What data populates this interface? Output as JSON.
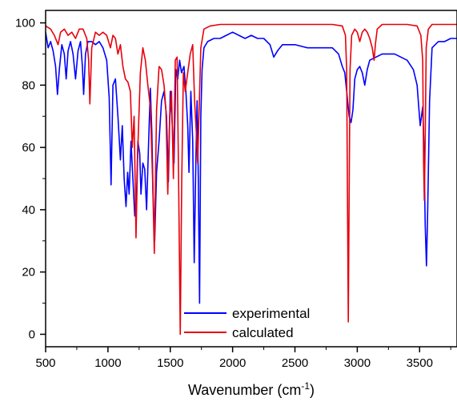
{
  "chart_data": {
    "type": "line",
    "title": "",
    "xlabel": "Wavenumber (cm",
    "xlabel_sup": "-1",
    "xlabel_close": ")",
    "ylabel": "",
    "xlim": [
      500,
      3800
    ],
    "ylim": [
      -4,
      104
    ],
    "x_ticks": [
      500,
      1000,
      1500,
      2000,
      2500,
      3000,
      3500
    ],
    "x_tick_labels": [
      "500",
      "1000",
      "1500",
      "2000",
      "2500",
      "3000",
      "3500"
    ],
    "y_ticks": [
      0,
      20,
      40,
      60,
      80,
      100
    ],
    "y_tick_labels": [
      "0",
      "20",
      "40",
      "60",
      "80",
      "100"
    ],
    "grid": false,
    "legend_position": "bottom-center",
    "series": [
      {
        "name": "experimental",
        "color": "#0000ff",
        "points": [
          [
            500,
            97
          ],
          [
            520,
            92
          ],
          [
            540,
            94
          ],
          [
            560,
            91
          ],
          [
            580,
            86
          ],
          [
            595,
            77
          ],
          [
            610,
            85
          ],
          [
            630,
            93
          ],
          [
            650,
            90
          ],
          [
            665,
            82
          ],
          [
            680,
            91
          ],
          [
            700,
            94
          ],
          [
            720,
            90
          ],
          [
            740,
            82
          ],
          [
            760,
            91
          ],
          [
            780,
            94
          ],
          [
            795,
            86
          ],
          [
            805,
            77
          ],
          [
            820,
            90
          ],
          [
            840,
            94
          ],
          [
            870,
            94
          ],
          [
            900,
            93
          ],
          [
            930,
            94
          ],
          [
            960,
            92
          ],
          [
            990,
            88
          ],
          [
            1010,
            76
          ],
          [
            1025,
            48
          ],
          [
            1040,
            80
          ],
          [
            1060,
            82
          ],
          [
            1080,
            70
          ],
          [
            1100,
            56
          ],
          [
            1115,
            67
          ],
          [
            1130,
            50
          ],
          [
            1145,
            41
          ],
          [
            1158,
            52
          ],
          [
            1170,
            45
          ],
          [
            1185,
            62
          ],
          [
            1200,
            50
          ],
          [
            1215,
            38
          ],
          [
            1228,
            42
          ],
          [
            1240,
            62
          ],
          [
            1255,
            58
          ],
          [
            1265,
            45
          ],
          [
            1280,
            55
          ],
          [
            1295,
            53
          ],
          [
            1310,
            40
          ],
          [
            1325,
            60
          ],
          [
            1340,
            79
          ],
          [
            1352,
            65
          ],
          [
            1362,
            45
          ],
          [
            1375,
            30
          ],
          [
            1390,
            52
          ],
          [
            1410,
            62
          ],
          [
            1430,
            75
          ],
          [
            1450,
            78
          ],
          [
            1470,
            70
          ],
          [
            1485,
            49
          ],
          [
            1500,
            78
          ],
          [
            1515,
            68
          ],
          [
            1530,
            55
          ],
          [
            1545,
            85
          ],
          [
            1560,
            82
          ],
          [
            1575,
            88
          ],
          [
            1590,
            84
          ],
          [
            1610,
            86
          ],
          [
            1625,
            78
          ],
          [
            1640,
            67
          ],
          [
            1650,
            52
          ],
          [
            1665,
            78
          ],
          [
            1680,
            62
          ],
          [
            1692,
            23
          ],
          [
            1705,
            55
          ],
          [
            1715,
            75
          ],
          [
            1725,
            50
          ],
          [
            1735,
            10
          ],
          [
            1745,
            70
          ],
          [
            1755,
            85
          ],
          [
            1770,
            92
          ],
          [
            1800,
            94
          ],
          [
            1850,
            95
          ],
          [
            1900,
            95
          ],
          [
            1950,
            96
          ],
          [
            2000,
            97
          ],
          [
            2050,
            96
          ],
          [
            2100,
            95
          ],
          [
            2150,
            96
          ],
          [
            2200,
            95
          ],
          [
            2250,
            95
          ],
          [
            2300,
            93
          ],
          [
            2330,
            89
          ],
          [
            2360,
            91
          ],
          [
            2400,
            93
          ],
          [
            2500,
            93
          ],
          [
            2600,
            92
          ],
          [
            2700,
            92
          ],
          [
            2800,
            92
          ],
          [
            2850,
            90
          ],
          [
            2880,
            86
          ],
          [
            2900,
            84
          ],
          [
            2920,
            76
          ],
          [
            2935,
            70
          ],
          [
            2950,
            68
          ],
          [
            2965,
            72
          ],
          [
            2980,
            82
          ],
          [
            3000,
            85
          ],
          [
            3020,
            86
          ],
          [
            3040,
            84
          ],
          [
            3060,
            80
          ],
          [
            3080,
            85
          ],
          [
            3100,
            88
          ],
          [
            3150,
            89
          ],
          [
            3200,
            90
          ],
          [
            3250,
            90
          ],
          [
            3300,
            90
          ],
          [
            3350,
            89
          ],
          [
            3400,
            88
          ],
          [
            3450,
            85
          ],
          [
            3480,
            80
          ],
          [
            3495,
            72
          ],
          [
            3505,
            67
          ],
          [
            3515,
            70
          ],
          [
            3525,
            73
          ],
          [
            3535,
            60
          ],
          [
            3545,
            35
          ],
          [
            3555,
            22
          ],
          [
            3565,
            40
          ],
          [
            3580,
            75
          ],
          [
            3600,
            92
          ],
          [
            3650,
            94
          ],
          [
            3700,
            94
          ],
          [
            3750,
            95
          ],
          [
            3800,
            95
          ]
        ]
      },
      {
        "name": "calculated",
        "color": "#e8000b",
        "points": [
          [
            500,
            99
          ],
          [
            540,
            98
          ],
          [
            570,
            96
          ],
          [
            600,
            93
          ],
          [
            620,
            97
          ],
          [
            650,
            98
          ],
          [
            680,
            96
          ],
          [
            710,
            97
          ],
          [
            740,
            95
          ],
          [
            770,
            98
          ],
          [
            800,
            98
          ],
          [
            830,
            95
          ],
          [
            845,
            88
          ],
          [
            855,
            74
          ],
          [
            870,
            92
          ],
          [
            900,
            97
          ],
          [
            930,
            96
          ],
          [
            960,
            97
          ],
          [
            990,
            96
          ],
          [
            1020,
            92
          ],
          [
            1040,
            96
          ],
          [
            1060,
            95
          ],
          [
            1080,
            90
          ],
          [
            1100,
            93
          ],
          [
            1120,
            86
          ],
          [
            1140,
            82
          ],
          [
            1160,
            81
          ],
          [
            1180,
            78
          ],
          [
            1195,
            60
          ],
          [
            1210,
            70
          ],
          [
            1225,
            31
          ],
          [
            1240,
            60
          ],
          [
            1260,
            84
          ],
          [
            1280,
            92
          ],
          [
            1300,
            88
          ],
          [
            1320,
            80
          ],
          [
            1340,
            73
          ],
          [
            1358,
            50
          ],
          [
            1372,
            26
          ],
          [
            1390,
            72
          ],
          [
            1410,
            86
          ],
          [
            1430,
            85
          ],
          [
            1450,
            80
          ],
          [
            1465,
            72
          ],
          [
            1480,
            45
          ],
          [
            1495,
            70
          ],
          [
            1510,
            78
          ],
          [
            1525,
            50
          ],
          [
            1540,
            88
          ],
          [
            1555,
            89
          ],
          [
            1568,
            45
          ],
          [
            1580,
            0
          ],
          [
            1592,
            50
          ],
          [
            1605,
            84
          ],
          [
            1620,
            78
          ],
          [
            1640,
            84
          ],
          [
            1660,
            90
          ],
          [
            1680,
            93
          ],
          [
            1695,
            75
          ],
          [
            1710,
            64
          ],
          [
            1720,
            55
          ],
          [
            1730,
            70
          ],
          [
            1745,
            92
          ],
          [
            1770,
            98
          ],
          [
            1820,
            99
          ],
          [
            1900,
            99.5
          ],
          [
            2000,
            99.5
          ],
          [
            2200,
            99.5
          ],
          [
            2400,
            99.5
          ],
          [
            2600,
            99.5
          ],
          [
            2800,
            99.5
          ],
          [
            2880,
            99
          ],
          [
            2905,
            96
          ],
          [
            2915,
            85
          ],
          [
            2922,
            40
          ],
          [
            2928,
            4
          ],
          [
            2934,
            40
          ],
          [
            2942,
            85
          ],
          [
            2955,
            96
          ],
          [
            2980,
            98
          ],
          [
            3000,
            97
          ],
          [
            3020,
            94
          ],
          [
            3040,
            97
          ],
          [
            3060,
            98
          ],
          [
            3080,
            97
          ],
          [
            3100,
            95
          ],
          [
            3120,
            92
          ],
          [
            3135,
            88
          ],
          [
            3145,
            93
          ],
          [
            3160,
            98
          ],
          [
            3200,
            99.5
          ],
          [
            3300,
            99.5
          ],
          [
            3400,
            99.5
          ],
          [
            3480,
            99
          ],
          [
            3510,
            96
          ],
          [
            3525,
            88
          ],
          [
            3532,
            55
          ],
          [
            3538,
            43
          ],
          [
            3544,
            60
          ],
          [
            3553,
            92
          ],
          [
            3570,
            98
          ],
          [
            3600,
            99.5
          ],
          [
            3700,
            99.5
          ],
          [
            3800,
            99.5
          ]
        ]
      }
    ]
  }
}
